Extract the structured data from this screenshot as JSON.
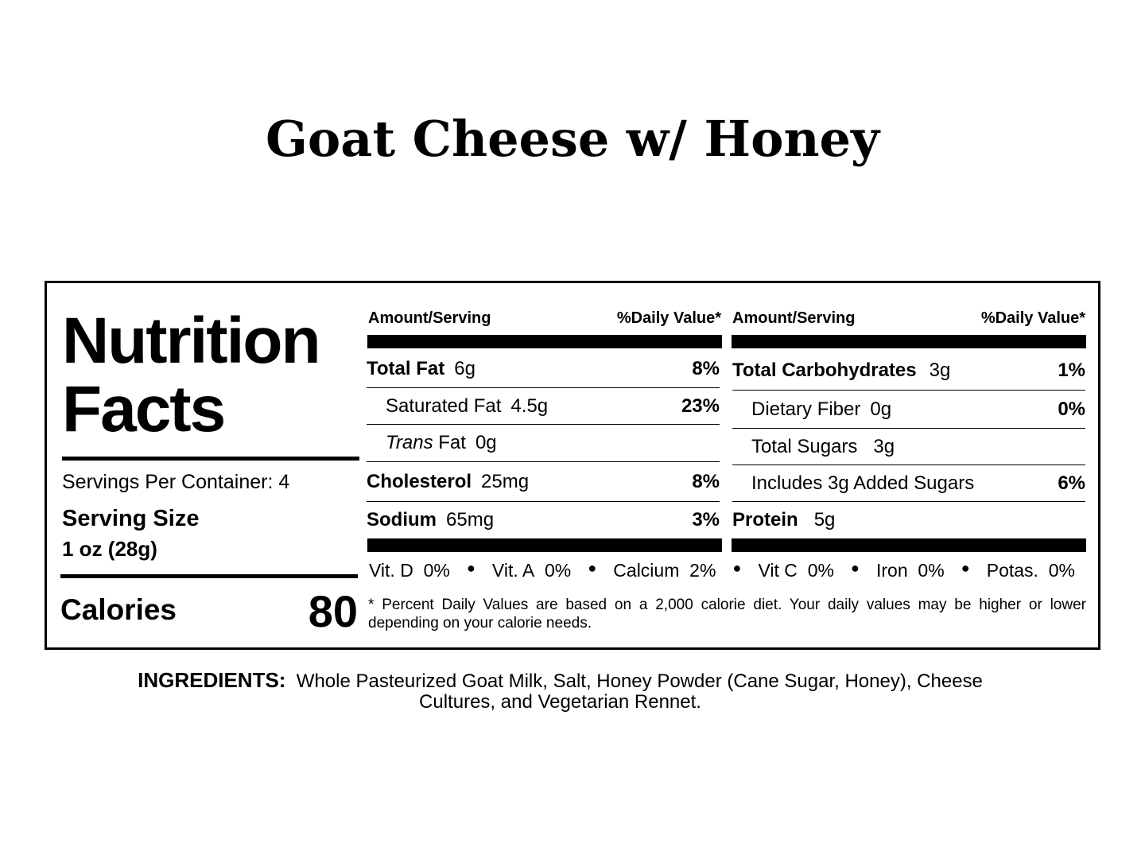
{
  "title": "Goat Cheese w/ Honey",
  "label": {
    "heading_1": "Nutrition",
    "heading_2": "Facts",
    "servings": "Servings Per Container: 4",
    "serving_size_label": "Serving Size",
    "serving_size": "1 oz (28g)",
    "calories_label": "Calories",
    "calories": 80,
    "left": {
      "header_amount": "Amount/Serving",
      "header_dv": "%Daily Value*",
      "total_fat": {
        "name": "Total Fat",
        "amount": "6g",
        "dv": "8%"
      },
      "saturated_fat": {
        "name": "Saturated Fat",
        "amount": "4.5g",
        "dv": "23%"
      },
      "trans_fat": {
        "name_italic": "Trans",
        "name": "Fat",
        "amount": "0g"
      },
      "cholesterol": {
        "name": "Cholesterol",
        "amount": "25mg",
        "dv": "8%"
      },
      "sodium": {
        "name": "Sodium",
        "amount": "65mg",
        "dv": "3%"
      }
    },
    "right": {
      "header_amount": "Amount/Serving",
      "header_dv": "%Daily Value*",
      "total_carbohydrates": {
        "name": "Total Carbohydrates",
        "amount": "3g",
        "dv": "1%"
      },
      "dietary_fiber": {
        "name": "Dietary Fiber",
        "amount": "0g",
        "dv": "0%"
      },
      "total_sugars": {
        "name": "Total Sugars",
        "amount": "3g"
      },
      "added_sugars": {
        "name": "Includes 3g Added Sugars",
        "dv": "6%"
      },
      "protein": {
        "name": "Protein",
        "amount": "5g"
      }
    },
    "vitamins": [
      {
        "name": "Vit. D",
        "value": "0%"
      },
      {
        "name": "Vit. A",
        "value": "0%"
      },
      {
        "name": "Calcium",
        "value": "2%"
      },
      {
        "name": "Vit C",
        "value": "0%"
      },
      {
        "name": "Iron",
        "value": "0%"
      },
      {
        "name": "Potas.",
        "value": "0%"
      }
    ],
    "footnote": "* Percent Daily Values are based on a 2,000 calorie diet. Your daily values may be higher or lower depending on your calorie needs."
  },
  "ingredients": {
    "label": "INGREDIENTS:",
    "text": "Whole Pasteurized Goat Milk, Salt, Honey Powder (Cane Sugar, Honey), Cheese Cultures, and Vegetarian Rennet."
  }
}
